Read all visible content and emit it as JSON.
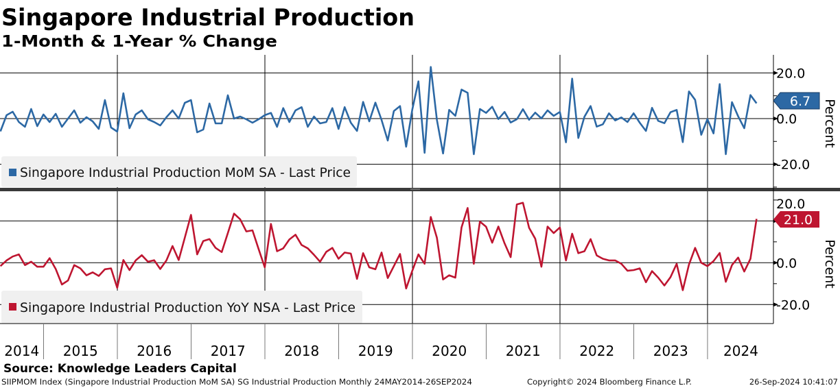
{
  "header": {
    "title": "Singapore Industrial Production",
    "subtitle": "1-Month & 1-Year % Change"
  },
  "footer": {
    "source": "Source: Knowledge Leaders Capital",
    "index_info": "SIIPMOM Index (Singapore Industrial Production MoM SA) SG Industrial Production  Monthly 24MAY2014-26SEP2024",
    "copyright": "Copyright© 2024 Bloomberg Finance L.P.",
    "timestamp": "26-Sep-2024 10:41:07"
  },
  "chart_data": [
    {
      "type": "line",
      "panel": "top",
      "title": "Singapore Industrial Production MoM SA - Last Price",
      "legend": "Singapore Industrial Production MoM SA - Last Price",
      "ylabel": "Percent",
      "ylim": [
        -30,
        29
      ],
      "yticks": [
        "20.0",
        "0.0",
        "-20.0"
      ],
      "ytick_values": [
        20,
        0,
        -20
      ],
      "last_value_label": "6.7",
      "color": "#2c68a4",
      "start_month": "2014-05",
      "frequency": "monthly",
      "values": [
        -5.6,
        1.5,
        3,
        -1.5,
        -3.6,
        4.2,
        -3.3,
        1.8,
        -1.5,
        2.1,
        -3.6,
        0,
        3.6,
        -1.8,
        0.6,
        -1.2,
        -4.5,
        8.1,
        -3.9,
        -5.7,
        11.1,
        -4.2,
        1.8,
        3.6,
        -0.3,
        -1.5,
        -3,
        0.6,
        3.6,
        0,
        6.9,
        8.1,
        -6,
        -4.8,
        6.6,
        -2.1,
        -2.1,
        10.2,
        0,
        0.9,
        -0.3,
        -1.8,
        -0.3,
        1.5,
        2.5,
        -3.6,
        4.6,
        -1.5,
        3.6,
        5,
        -3.6,
        0.9,
        -2.1,
        -1.5,
        4.6,
        -4.5,
        5,
        -1.8,
        -5.4,
        7.3,
        -1.2,
        7,
        -0.6,
        -9.6,
        3.3,
        5.5,
        -12.3,
        4,
        16.3,
        -15,
        22.6,
        -0.5,
        -15.3,
        3.8,
        1.2,
        12.7,
        11.3,
        -15.6,
        4.2,
        2.5,
        5.2,
        -0.2,
        2.9,
        -1.7,
        -0.3,
        4.1,
        -0.5,
        2.6,
        0.1,
        3.6,
        1.2,
        2.9,
        -10.4,
        17.5,
        -8.5,
        0.8,
        5.5,
        -3.5,
        -2.5,
        2.3,
        -0.8,
        0.5,
        -1.5,
        2.3,
        -1.8,
        -5.4,
        4.7,
        -1,
        -2,
        2.8,
        3.8,
        -10.3,
        11.9,
        8.2,
        -7.1,
        -0.2,
        -6.5,
        15.1,
        -15.6,
        7.2,
        1,
        -4.2,
        10.3,
        6.7
      ]
    },
    {
      "type": "line",
      "panel": "bottom",
      "title": "Singapore Industrial Production YoY NSA - Last Price",
      "legend": "Singapore Industrial Production YoY NSA - Last Price",
      "ylabel": "Percent",
      "ylim": [
        -29,
        34
      ],
      "yticks": [
        "20.0",
        "0.0",
        "-20.0"
      ],
      "ytick_values": [
        20,
        0,
        -20
      ],
      "last_value_label": "21.0",
      "color": "#be1530",
      "start_month": "2014-05",
      "frequency": "monthly",
      "values": [
        -1.6,
        1.1,
        3,
        4,
        -1.1,
        0.5,
        -1.9,
        -1.9,
        2.2,
        -3,
        -10.4,
        -8.5,
        -1.1,
        -2.7,
        -6,
        -4.6,
        -6.3,
        -3.1,
        -2.7,
        -12,
        1.3,
        -3.5,
        1.1,
        3.6,
        0.5,
        1.2,
        -3,
        1.1,
        8,
        1.3,
        12,
        22.9,
        4,
        10.4,
        11.3,
        7.1,
        5.1,
        14.2,
        23.5,
        20.8,
        15,
        15.5,
        6.6,
        -2.2,
        18.6,
        5.5,
        6.9,
        11.1,
        13.4,
        8.5,
        6.9,
        3.8,
        0.5,
        5.2,
        7.1,
        1.9,
        4.9,
        4.4,
        -7.7,
        4.6,
        -2.2,
        -3.1,
        4.9,
        -7.3,
        -1.6,
        4.2,
        -12.3,
        -3.8,
        4,
        -0.5,
        21.9,
        12,
        -8,
        -6,
        -7.1,
        16.9,
        26.2,
        -0.5,
        19.7,
        17.2,
        9.6,
        17.3,
        9.3,
        2.7,
        27.9,
        28.7,
        16.7,
        11.5,
        -1.9,
        17.3,
        14.2,
        16.9,
        1.1,
        13.9,
        4.6,
        5.5,
        11.3,
        3.5,
        1.9,
        1.1,
        1.1,
        -0.5,
        -3.8,
        -3.5,
        -2.7,
        -9.3,
        -4,
        -7.1,
        -10.9,
        -6.9,
        -0.5,
        -13.1,
        -0.9,
        7.1,
        0,
        -1.6,
        0.8,
        4.7,
        -9.1,
        -1.1,
        2.5,
        -4.2,
        1.9,
        21
      ]
    }
  ],
  "x_axis": {
    "years": [
      "2014",
      "2015",
      "2016",
      "2017",
      "2018",
      "2019",
      "2020",
      "2021",
      "2022",
      "2023",
      "2024"
    ]
  }
}
